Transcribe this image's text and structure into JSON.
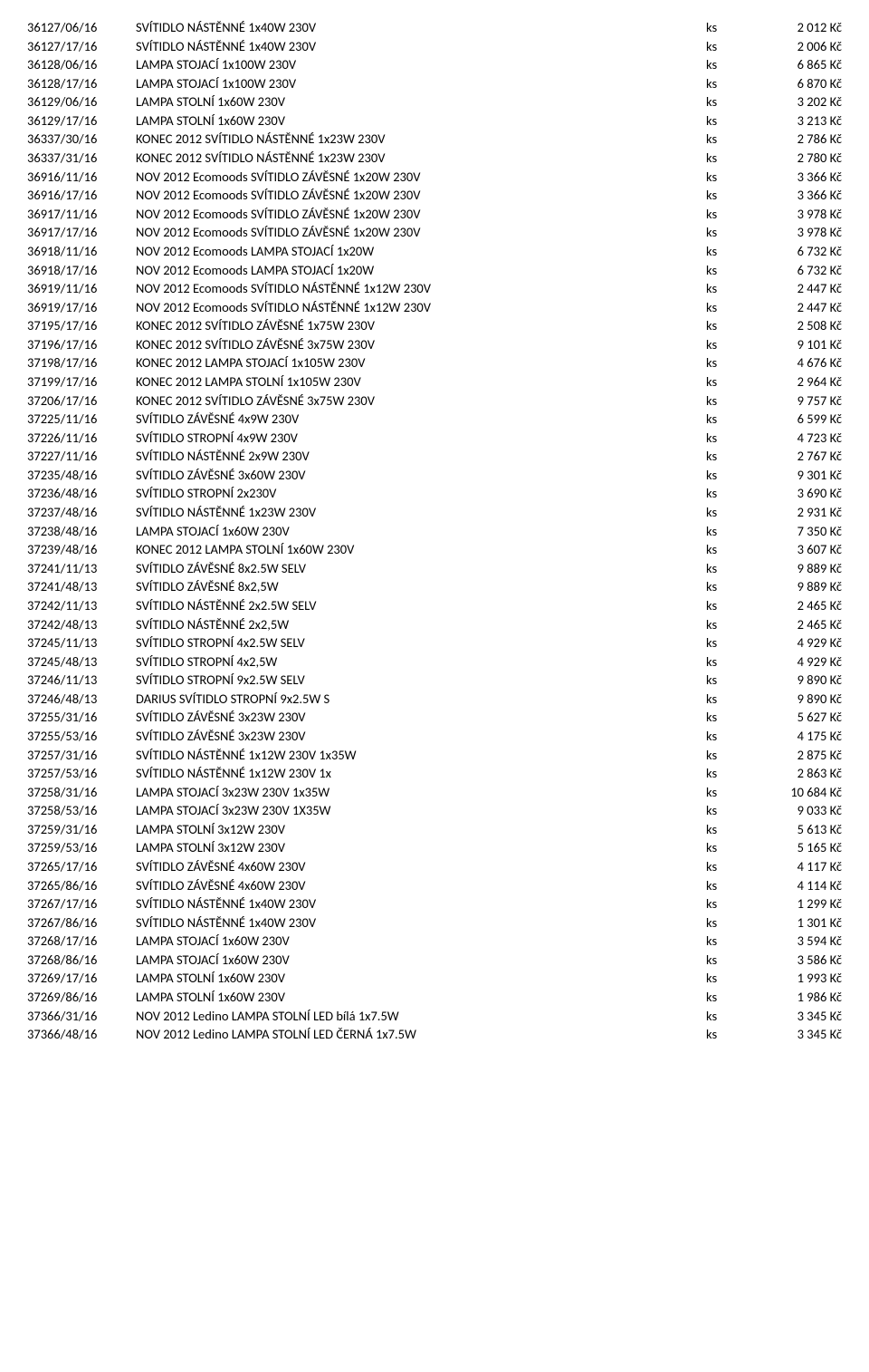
{
  "table": {
    "rows": [
      {
        "code": "36127/06/16",
        "desc": "SVÍTIDLO NÁSTĚNNÉ 1x40W 230V",
        "unit": "ks",
        "price": "2 012 Kč"
      },
      {
        "code": "36127/17/16",
        "desc": "SVÍTIDLO NÁSTĚNNÉ 1x40W 230V",
        "unit": "ks",
        "price": "2 006 Kč"
      },
      {
        "code": "36128/06/16",
        "desc": "LAMPA STOJACÍ 1x100W 230V",
        "unit": "ks",
        "price": "6 865 Kč"
      },
      {
        "code": "36128/17/16",
        "desc": "LAMPA STOJACÍ 1x100W 230V",
        "unit": "ks",
        "price": "6 870 Kč"
      },
      {
        "code": "36129/06/16",
        "desc": "LAMPA STOLNÍ 1x60W 230V",
        "unit": "ks",
        "price": "3 202 Kč"
      },
      {
        "code": "36129/17/16",
        "desc": "LAMPA STOLNÍ 1x60W 230V",
        "unit": "ks",
        "price": "3 213 Kč"
      },
      {
        "code": "36337/30/16",
        "desc": "KONEC 2012 SVÍTIDLO NÁSTĚNNÉ 1x23W 230V",
        "unit": "ks",
        "price": "2 786 Kč"
      },
      {
        "code": "36337/31/16",
        "desc": "KONEC 2012 SVÍTIDLO NÁSTĚNNÉ 1x23W 230V",
        "unit": "ks",
        "price": "2 780 Kč"
      },
      {
        "code": "36916/11/16",
        "desc": "NOV 2012 Ecomoods SVÍTIDLO ZÁVĚSNÉ 1x20W 230V",
        "unit": "ks",
        "price": "3 366 Kč"
      },
      {
        "code": "36916/17/16",
        "desc": "NOV 2012 Ecomoods SVÍTIDLO ZÁVĚSNÉ 1x20W 230V",
        "unit": "ks",
        "price": "3 366 Kč"
      },
      {
        "code": "36917/11/16",
        "desc": "NOV 2012 Ecomoods SVÍTIDLO ZÁVĚSNÉ 1x20W 230V",
        "unit": "ks",
        "price": "3 978 Kč"
      },
      {
        "code": "36917/17/16",
        "desc": "NOV 2012 Ecomoods SVÍTIDLO ZÁVĚSNÉ 1x20W 230V",
        "unit": "ks",
        "price": "3 978 Kč"
      },
      {
        "code": "36918/11/16",
        "desc": "NOV 2012 Ecomoods LAMPA STOJACÍ 1x20W",
        "unit": "ks",
        "price": "6 732 Kč"
      },
      {
        "code": "36918/17/16",
        "desc": "NOV 2012 Ecomoods LAMPA STOJACÍ 1x20W",
        "unit": "ks",
        "price": "6 732 Kč"
      },
      {
        "code": "36919/11/16",
        "desc": "NOV 2012 Ecomoods SVÍTIDLO NÁSTĚNNÉ 1x12W 230V",
        "unit": "ks",
        "price": "2 447 Kč"
      },
      {
        "code": "36919/17/16",
        "desc": "NOV 2012 Ecomoods SVÍTIDLO NÁSTĚNNÉ 1x12W 230V",
        "unit": "ks",
        "price": "2 447 Kč"
      },
      {
        "code": "37195/17/16",
        "desc": "KONEC 2012 SVÍTIDLO ZÁVĚSNÉ 1x75W 230V",
        "unit": "ks",
        "price": "2 508 Kč"
      },
      {
        "code": "37196/17/16",
        "desc": "KONEC 2012 SVÍTIDLO ZÁVĚSNÉ 3x75W 230V",
        "unit": "ks",
        "price": "9 101 Kč"
      },
      {
        "code": "37198/17/16",
        "desc": "KONEC 2012 LAMPA STOJACÍ 1x105W 230V",
        "unit": "ks",
        "price": "4 676 Kč"
      },
      {
        "code": "37199/17/16",
        "desc": "KONEC 2012 LAMPA STOLNÍ 1x105W 230V",
        "unit": "ks",
        "price": "2 964 Kč"
      },
      {
        "code": "37206/17/16",
        "desc": "KONEC 2012 SVÍTIDLO ZÁVĚSNÉ 3x75W 230V",
        "unit": "ks",
        "price": "9 757 Kč"
      },
      {
        "code": "37225/11/16",
        "desc": "SVÍTIDLO ZÁVĚSNÉ 4x9W 230V",
        "unit": "ks",
        "price": "6 599 Kč"
      },
      {
        "code": "37226/11/16",
        "desc": "SVÍTIDLO STROPNÍ 4x9W 230V",
        "unit": "ks",
        "price": "4 723 Kč"
      },
      {
        "code": "37227/11/16",
        "desc": "SVÍTIDLO NÁSTĚNNÉ 2x9W 230V",
        "unit": "ks",
        "price": "2 767 Kč"
      },
      {
        "code": "37235/48/16",
        "desc": "SVÍTIDLO ZÁVĚSNÉ 3x60W 230V",
        "unit": "ks",
        "price": "9 301 Kč"
      },
      {
        "code": "37236/48/16",
        "desc": "SVÍTIDLO STROPNÍ 2x230V",
        "unit": "ks",
        "price": "3 690 Kč"
      },
      {
        "code": "37237/48/16",
        "desc": "SVÍTIDLO NÁSTĚNNÉ 1x23W 230V",
        "unit": "ks",
        "price": "2 931 Kč"
      },
      {
        "code": "37238/48/16",
        "desc": "LAMPA STOJACÍ 1x60W 230V",
        "unit": "ks",
        "price": "7 350 Kč"
      },
      {
        "code": "37239/48/16",
        "desc": "KONEC 2012 LAMPA STOLNÍ 1x60W 230V",
        "unit": "ks",
        "price": "3 607 Kč"
      },
      {
        "code": "37241/11/13",
        "desc": "SVÍTIDLO ZÁVĚSNÉ 8x2.5W SELV",
        "unit": "ks",
        "price": "9 889 Kč"
      },
      {
        "code": "37241/48/13",
        "desc": "SVÍTIDLO ZÁVĚSNÉ 8x2,5W",
        "unit": "ks",
        "price": "9 889 Kč"
      },
      {
        "code": "37242/11/13",
        "desc": "SVÍTIDLO NÁSTĚNNÉ 2x2.5W SELV",
        "unit": "ks",
        "price": "2 465 Kč"
      },
      {
        "code": "37242/48/13",
        "desc": "SVÍTIDLO NÁSTĚNNÉ 2x2,5W",
        "unit": "ks",
        "price": "2 465 Kč"
      },
      {
        "code": "37245/11/13",
        "desc": "SVÍTIDLO STROPNÍ 4x2.5W SELV",
        "unit": "ks",
        "price": "4 929 Kč"
      },
      {
        "code": "37245/48/13",
        "desc": "SVÍTIDLO STROPNÍ 4x2,5W",
        "unit": "ks",
        "price": "4 929 Kč"
      },
      {
        "code": "37246/11/13",
        "desc": "SVÍTIDLO STROPNÍ 9x2.5W SELV",
        "unit": "ks",
        "price": "9 890 Kč"
      },
      {
        "code": "37246/48/13",
        "desc": "DARIUS SVÍTIDLO STROPNÍ 9x2.5W S",
        "unit": "ks",
        "price": "9 890 Kč"
      },
      {
        "code": "37255/31/16",
        "desc": "SVÍTIDLO ZÁVĚSNÉ 3x23W 230V",
        "unit": "ks",
        "price": "5 627 Kč"
      },
      {
        "code": "37255/53/16",
        "desc": "SVÍTIDLO ZÁVĚSNÉ 3x23W 230V",
        "unit": "ks",
        "price": "4 175 Kč"
      },
      {
        "code": "37257/31/16",
        "desc": "SVÍTIDLO NÁSTĚNNÉ 1x12W 230V 1x35W",
        "unit": "ks",
        "price": "2 875 Kč"
      },
      {
        "code": "37257/53/16",
        "desc": "SVÍTIDLO NÁSTĚNNÉ 1x12W 230V 1x",
        "unit": "ks",
        "price": "2 863 Kč"
      },
      {
        "code": "37258/31/16",
        "desc": "LAMPA STOJACÍ 3x23W 230V 1x35W",
        "unit": "ks",
        "price": "10 684 Kč"
      },
      {
        "code": "37258/53/16",
        "desc": "LAMPA STOJACÍ 3x23W 230V 1X35W",
        "unit": "ks",
        "price": "9 033 Kč"
      },
      {
        "code": "37259/31/16",
        "desc": "LAMPA STOLNÍ 3x12W 230V",
        "unit": "ks",
        "price": "5 613 Kč"
      },
      {
        "code": "37259/53/16",
        "desc": "LAMPA STOLNÍ 3x12W 230V",
        "unit": "ks",
        "price": "5 165 Kč"
      },
      {
        "code": "37265/17/16",
        "desc": "SVÍTIDLO ZÁVĚSNÉ 4x60W 230V",
        "unit": "ks",
        "price": "4 117 Kč"
      },
      {
        "code": "37265/86/16",
        "desc": "SVÍTIDLO ZÁVĚSNÉ 4x60W 230V",
        "unit": "ks",
        "price": "4 114 Kč"
      },
      {
        "code": "37267/17/16",
        "desc": "SVÍTIDLO NÁSTĚNNÉ 1x40W 230V",
        "unit": "ks",
        "price": "1 299 Kč"
      },
      {
        "code": "37267/86/16",
        "desc": "SVÍTIDLO NÁSTĚNNÉ 1x40W 230V",
        "unit": "ks",
        "price": "1 301 Kč"
      },
      {
        "code": "37268/17/16",
        "desc": "LAMPA STOJACÍ 1x60W 230V",
        "unit": "ks",
        "price": "3 594 Kč"
      },
      {
        "code": "37268/86/16",
        "desc": "LAMPA STOJACÍ 1x60W 230V",
        "unit": "ks",
        "price": "3 586 Kč"
      },
      {
        "code": "37269/17/16",
        "desc": "LAMPA STOLNÍ 1x60W 230V",
        "unit": "ks",
        "price": "1 993 Kč"
      },
      {
        "code": "37269/86/16",
        "desc": "LAMPA STOLNÍ 1x60W 230V",
        "unit": "ks",
        "price": "1 986 Kč"
      },
      {
        "code": "37366/31/16",
        "desc": "NOV 2012 Ledino LAMPA STOLNÍ LED bílá 1x7.5W",
        "unit": "ks",
        "price": "3 345 Kč"
      },
      {
        "code": "37366/48/16",
        "desc": "NOV 2012 Ledino LAMPA STOLNÍ LED ČERNÁ 1x7.5W",
        "unit": "ks",
        "price": "3 345 Kč"
      }
    ]
  }
}
